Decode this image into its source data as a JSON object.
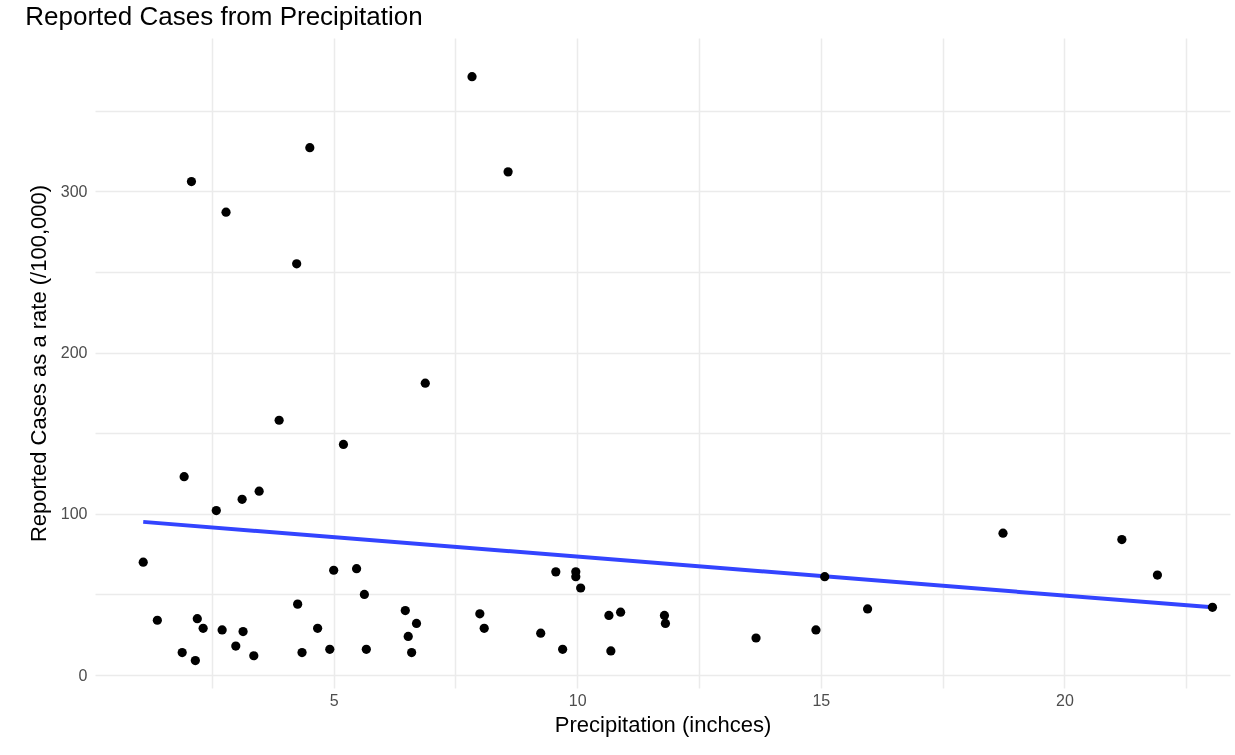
{
  "chart_data": {
    "type": "scatter",
    "title": "Reported Cases from Precipitation",
    "xlabel": "Precipitation (inchces)",
    "ylabel": "Reported Cases as a rate (/100,000)",
    "xlim": [
      0.1,
      23.4
    ],
    "ylim": [
      -8,
      395
    ],
    "xticks": [
      {
        "value": 2.5,
        "label": null
      },
      5,
      {
        "value": 7.5,
        "label": null
      },
      10,
      {
        "value": 12.5,
        "label": null
      },
      15,
      {
        "value": 17.5,
        "label": null
      },
      20,
      {
        "value": 22.5,
        "label": null
      }
    ],
    "yticks": [
      0,
      {
        "value": 50,
        "label": null
      },
      100,
      {
        "value": 150,
        "label": null
      },
      200,
      {
        "value": 250,
        "label": null
      },
      300,
      {
        "value": 350,
        "label": null
      }
    ],
    "grid": true,
    "series": [
      {
        "marker": "circle",
        "color": "#000000",
        "x": [
          1.09,
          1.38,
          1.89,
          1.93,
          2.08,
          2.16,
          2.2,
          2.32,
          2.59,
          2.71,
          2.79,
          2.99,
          3.12,
          3.14,
          3.36,
          3.47,
          3.88,
          4.24,
          4.26,
          4.35,
          4.51,
          4.67,
          4.92,
          5.0,
          5.2,
          5.47,
          5.63,
          5.67,
          6.47,
          6.53,
          6.6,
          6.7,
          6.88,
          7.84,
          8.0,
          8.09,
          8.58,
          9.25,
          9.56,
          9.7,
          9.97,
          9.97,
          10.07,
          10.65,
          10.69,
          10.89,
          11.79,
          11.81,
          13.67,
          14.9,
          15.08,
          15.96,
          18.74,
          21.18,
          21.91,
          23.04
        ],
        "values": [
          70,
          34,
          14,
          123,
          306,
          9,
          35,
          29,
          102,
          28,
          287,
          18,
          109,
          27,
          12,
          114,
          158,
          255,
          44,
          14,
          327,
          29,
          16,
          65,
          143,
          66,
          50,
          16,
          40,
          24,
          14,
          32,
          181,
          371,
          38,
          29,
          312,
          26,
          64,
          16,
          64,
          61,
          54,
          37,
          15,
          39,
          37,
          32,
          23,
          28,
          61,
          41,
          88,
          84,
          62,
          42
        ]
      },
      {
        "type": "line",
        "color": "#3344ff",
        "x": [
          1.09,
          23.04
        ],
        "values": [
          95,
          42
        ]
      }
    ]
  }
}
